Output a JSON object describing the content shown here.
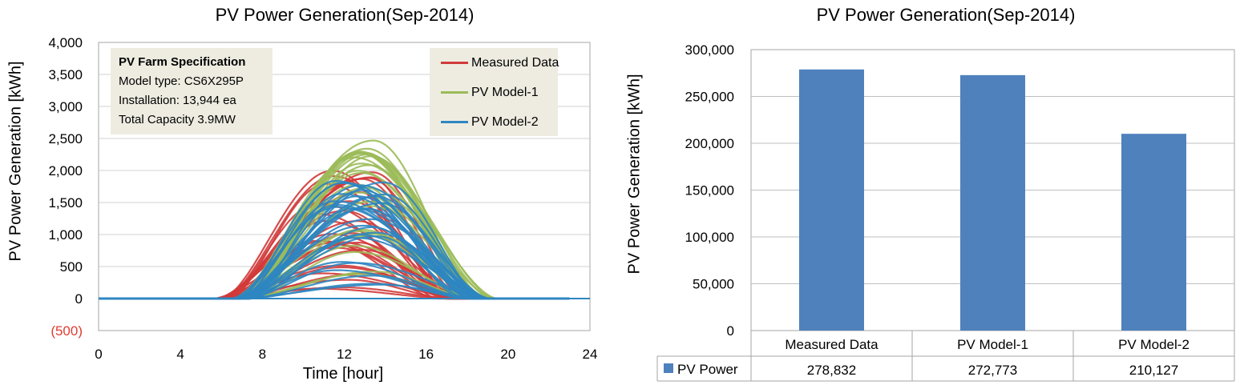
{
  "chart_data": [
    {
      "type": "line",
      "title": "PV Power Generation(Sep-2014)",
      "xlabel": "Time [hour]",
      "ylabel": "PV Power Generation [kWh]",
      "xlim": [
        0,
        24
      ],
      "ylim": [
        -500,
        4000
      ],
      "x_ticks": [
        "0",
        "4",
        "8",
        "12",
        "16",
        "20",
        "24"
      ],
      "y_ticks": [
        "(500)",
        "0",
        "500",
        "1,000",
        "1,500",
        "2,000",
        "2,500",
        "3,000",
        "3,500",
        "4,000"
      ],
      "grid": true,
      "legend_position": "top-right",
      "series": [
        {
          "name": "Measured Data",
          "color": "#d13a3a",
          "curve_count": 30,
          "start_hour": 5.5,
          "end_hour": 18,
          "peak_hour_range": [
            10.5,
            13.5
          ],
          "peak_range": [
            100,
            2000
          ]
        },
        {
          "name": "PV Model-1",
          "color": "#9bbb59",
          "curve_count": 30,
          "start_hour": 6.5,
          "end_hour": 19.5,
          "peak_hour_range": [
            12.5,
            13.5
          ],
          "peak_range": [
            200,
            2480
          ]
        },
        {
          "name": "PV Model-2",
          "color": "#2e86c1",
          "curve_count": 30,
          "start_hour": 6.5,
          "end_hour": 19.2,
          "peak_hour_range": [
            11.5,
            14
          ],
          "peak_range": [
            100,
            2000
          ]
        }
      ],
      "annotation": {
        "title": "PV Farm Specification",
        "lines": [
          "Model type: CS6X295P",
          "Installation: 13,944 ea",
          "Total Capacity 3.9MW"
        ]
      }
    },
    {
      "type": "bar",
      "title": "PV Power Generation(Sep-2014)",
      "xlabel": "",
      "ylabel": "PV Power Generation [kWh]",
      "ylim": [
        0,
        300000
      ],
      "y_ticks": [
        "0",
        "50,000",
        "100,000",
        "150,000",
        "200,000",
        "250,000",
        "300,000"
      ],
      "categories": [
        "Measured Data",
        "PV Model-1",
        "PV Model-2"
      ],
      "series": [
        {
          "name": "PV Power",
          "values": [
            278832,
            272773,
            210127
          ],
          "labels": [
            "278,832",
            "272,773",
            "210,127"
          ],
          "color": "#4f81bd"
        }
      ],
      "grid": true,
      "data_table": true
    }
  ]
}
